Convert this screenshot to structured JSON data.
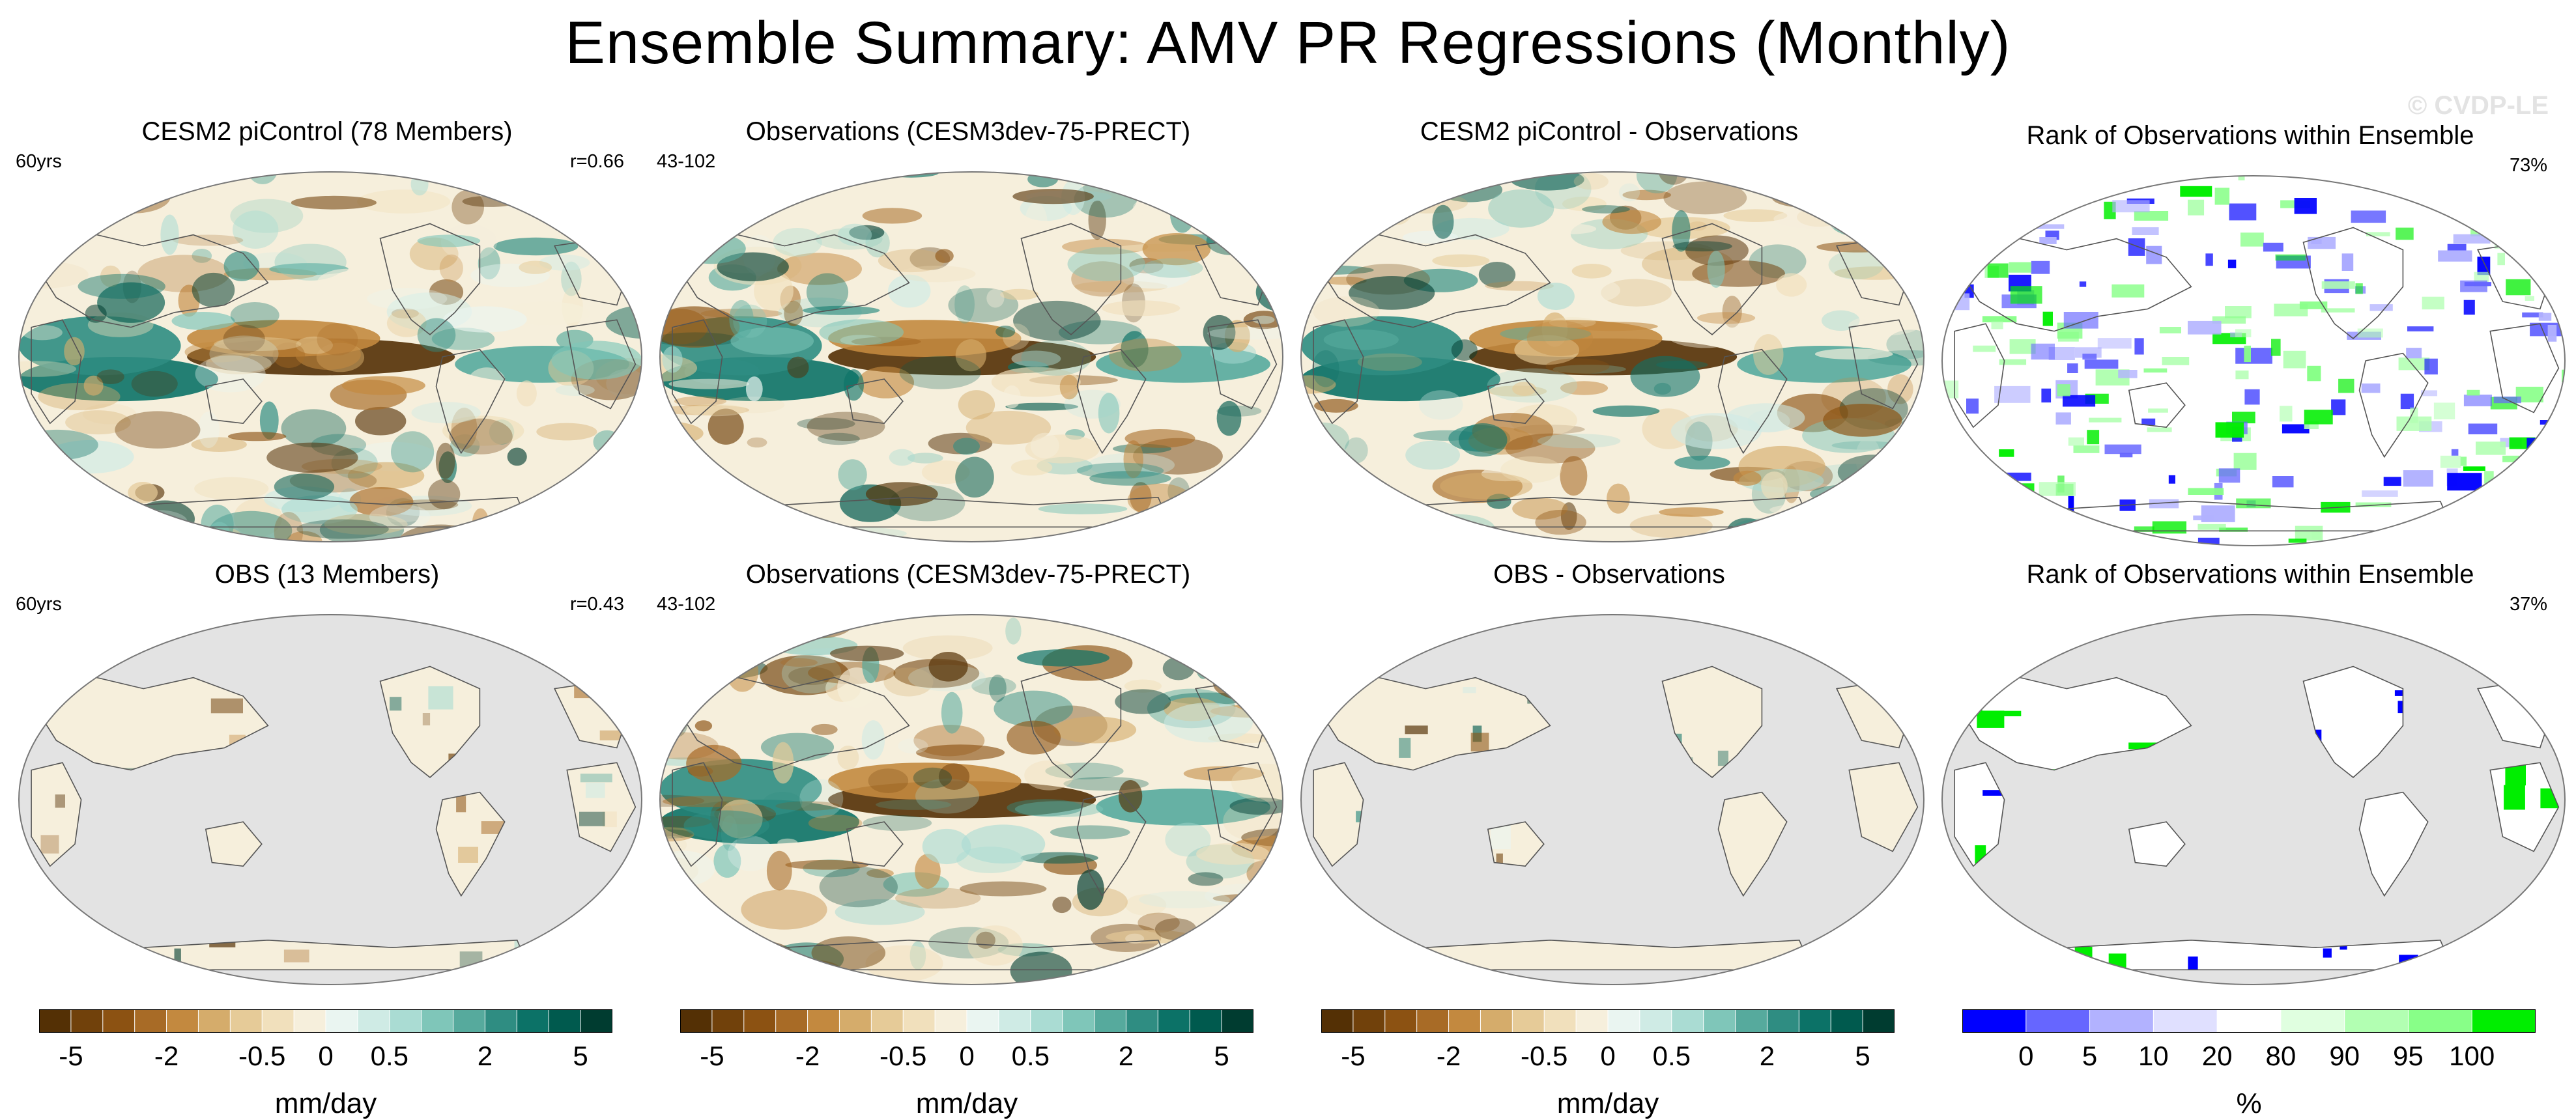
{
  "figure": {
    "title": "Ensemble Summary: AMV PR Regressions (Monthly)",
    "watermark": "© CVDP-LE"
  },
  "palettes": {
    "diverging": [
      "#543005",
      "#71410b",
      "#8c5212",
      "#a86b26",
      "#c3893f",
      "#d5ac6b",
      "#e6cb98",
      "#f1e0bc",
      "#f6efdc",
      "#eaf5f1",
      "#cfebe5",
      "#aadcd3",
      "#7fc6b9",
      "#56aa9d",
      "#2f8d82",
      "#0c7267",
      "#005a4e",
      "#003c30"
    ],
    "rank": [
      "#0000ff",
      "#6666ff",
      "#b2b2ff",
      "#e0e0ff",
      "#ffffff",
      "#e0ffe0",
      "#b2ffb2",
      "#88ff88",
      "#00ee00"
    ],
    "land_mask": "#e3e3e3",
    "coast": "#555555"
  },
  "panels": [
    {
      "title": "CESM2 piControl (78 Members)",
      "left": "60yrs",
      "right": "r=0.66",
      "kind": "field",
      "masked": false,
      "seed": 11
    },
    {
      "title": "Observations (CESM3dev-75-PRECT)",
      "left": "43-102",
      "right": "",
      "kind": "field",
      "masked": false,
      "seed": 23
    },
    {
      "title": "CESM2 piControl - Observations",
      "left": "",
      "right": "",
      "kind": "field",
      "masked": false,
      "seed": 37
    },
    {
      "title": "Rank of Observations within Ensemble",
      "left": "",
      "right": "73%",
      "kind": "rank",
      "masked": false,
      "seed": 41
    },
    {
      "title": "OBS (13 Members)",
      "left": "60yrs",
      "right": "r=0.43",
      "kind": "field",
      "masked": true,
      "seed": 53
    },
    {
      "title": "Observations (CESM3dev-75-PRECT)",
      "left": "43-102",
      "right": "",
      "kind": "field",
      "masked": false,
      "seed": 67
    },
    {
      "title": "OBS - Observations",
      "left": "",
      "right": "",
      "kind": "field",
      "masked": true,
      "seed": 71
    },
    {
      "title": "Rank of Observations within Ensemble",
      "left": "",
      "right": "37%",
      "kind": "rank",
      "masked": true,
      "seed": 83
    }
  ],
  "colorbars": [
    {
      "type": "diverging",
      "labels": [
        "-5",
        "-2",
        "-0.5",
        "0",
        "0.5",
        "2",
        "5"
      ],
      "unit": "mm/day"
    },
    {
      "type": "diverging",
      "labels": [
        "-5",
        "-2",
        "-0.5",
        "0",
        "0.5",
        "2",
        "5"
      ],
      "unit": "mm/day"
    },
    {
      "type": "diverging",
      "labels": [
        "-5",
        "-2",
        "-0.5",
        "0",
        "0.5",
        "2",
        "5"
      ],
      "unit": "mm/day"
    },
    {
      "type": "rank",
      "labels": [
        "0",
        "5",
        "10",
        "20",
        "80",
        "90",
        "95",
        "100"
      ],
      "unit": "%"
    }
  ],
  "chart_data": [
    {
      "type": "heatmap",
      "title": "CESM2 piControl (78 Members)",
      "units": "mm/day",
      "annotations": [
        "60yrs",
        "r=0.66"
      ],
      "colorbar_levels": [
        -5,
        -4,
        -3,
        -2,
        -1,
        -0.5,
        -0.2,
        -0.1,
        0,
        0.1,
        0.2,
        0.5,
        1,
        2,
        3,
        4,
        5
      ]
    },
    {
      "type": "heatmap",
      "title": "Observations (CESM3dev-75-PRECT)",
      "units": "mm/day",
      "annotations": [
        "43-102"
      ],
      "colorbar_levels": [
        -5,
        -4,
        -3,
        -2,
        -1,
        -0.5,
        -0.2,
        -0.1,
        0,
        0.1,
        0.2,
        0.5,
        1,
        2,
        3,
        4,
        5
      ]
    },
    {
      "type": "heatmap",
      "title": "CESM2 piControl - Observations",
      "units": "mm/day",
      "colorbar_levels": [
        -5,
        -4,
        -3,
        -2,
        -1,
        -0.5,
        -0.2,
        -0.1,
        0,
        0.1,
        0.2,
        0.5,
        1,
        2,
        3,
        4,
        5
      ]
    },
    {
      "type": "heatmap",
      "title": "Rank of Observations within Ensemble",
      "units": "%",
      "annotations": [
        "73%"
      ],
      "colorbar_levels": [
        0,
        5,
        10,
        20,
        80,
        90,
        95,
        100
      ]
    },
    {
      "type": "heatmap",
      "title": "OBS (13 Members)",
      "units": "mm/day",
      "annotations": [
        "60yrs",
        "r=0.43"
      ],
      "colorbar_levels": [
        -5,
        -4,
        -3,
        -2,
        -1,
        -0.5,
        -0.2,
        -0.1,
        0,
        0.1,
        0.2,
        0.5,
        1,
        2,
        3,
        4,
        5
      ]
    },
    {
      "type": "heatmap",
      "title": "Observations (CESM3dev-75-PRECT)",
      "units": "mm/day",
      "annotations": [
        "43-102"
      ],
      "colorbar_levels": [
        -5,
        -4,
        -3,
        -2,
        -1,
        -0.5,
        -0.2,
        -0.1,
        0,
        0.1,
        0.2,
        0.5,
        1,
        2,
        3,
        4,
        5
      ]
    },
    {
      "type": "heatmap",
      "title": "OBS - Observations",
      "units": "mm/day",
      "colorbar_levels": [
        -5,
        -4,
        -3,
        -2,
        -1,
        -0.5,
        -0.2,
        -0.1,
        0,
        0.1,
        0.2,
        0.5,
        1,
        2,
        3,
        4,
        5
      ]
    },
    {
      "type": "heatmap",
      "title": "Rank of Observations within Ensemble",
      "units": "%",
      "annotations": [
        "37%"
      ],
      "colorbar_levels": [
        0,
        5,
        10,
        20,
        80,
        90,
        95,
        100
      ]
    }
  ]
}
